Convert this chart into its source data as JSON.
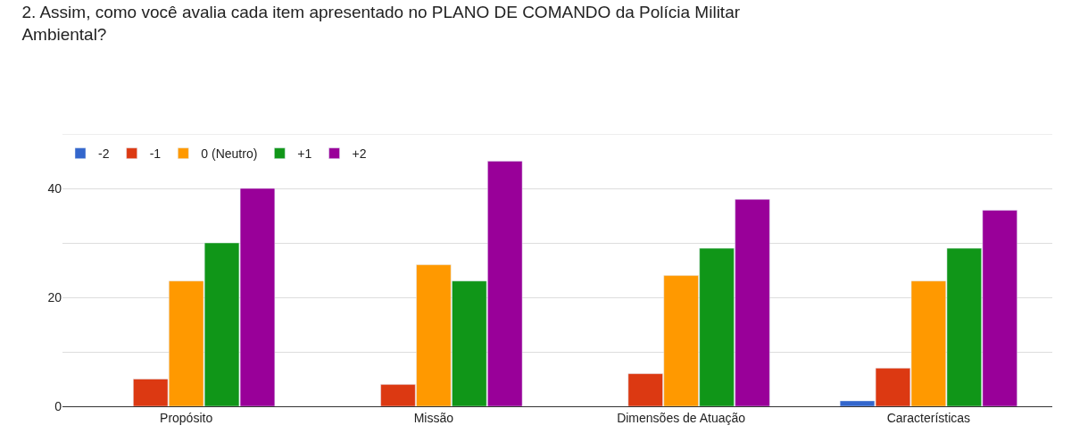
{
  "chart_data": {
    "type": "bar",
    "title": "2. Assim, como você avalia cada item apresentado no PLANO DE COMANDO da Polícia Militar Ambiental?",
    "categories": [
      "Propósito",
      "Missão",
      "Dimensões de Atuação",
      "Características"
    ],
    "series": [
      {
        "name": "-2",
        "color": "#3366cc",
        "values": [
          null,
          null,
          null,
          1
        ]
      },
      {
        "name": "-1",
        "color": "#dc3912",
        "values": [
          5,
          4,
          6,
          7
        ]
      },
      {
        "name": "0 (Neutro)",
        "color": "#ff9900",
        "values": [
          23,
          26,
          24,
          23
        ]
      },
      {
        "name": "+1",
        "color": "#109618",
        "values": [
          30,
          23,
          29,
          29
        ]
      },
      {
        "name": "+2",
        "color": "#990099",
        "values": [
          40,
          45,
          38,
          36
        ]
      }
    ],
    "ylim": [
      0,
      50
    ],
    "yticks": [
      0,
      {
        "value": 10,
        "label": null
      },
      20,
      {
        "value": 30,
        "label": null
      },
      40,
      {
        "value": 50,
        "label": null
      }
    ],
    "grid": "y",
    "legend": "top left"
  }
}
